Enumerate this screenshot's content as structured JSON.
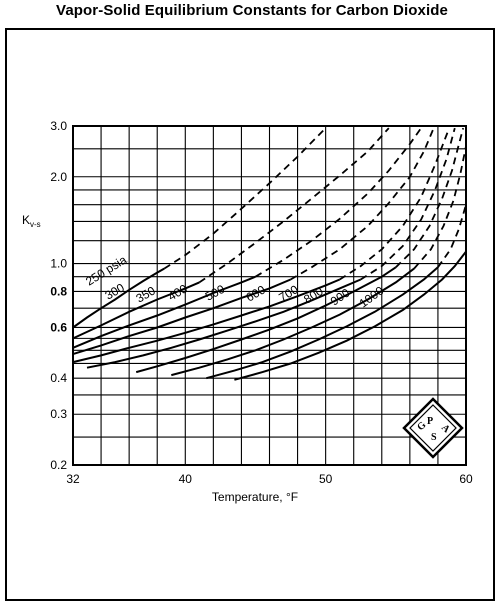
{
  "chart_data": {
    "type": "line",
    "title": "Vapor-Solid Equilibrium Constants for Carbon Dioxide",
    "xlabel": "Temperature, °F",
    "ylabel": "Kv-s",
    "ylabel_main": "K",
    "ylabel_sub": "v-s",
    "xlim": [
      32,
      60
    ],
    "ylim": [
      0.2,
      3.0
    ],
    "yscale": "log",
    "grid": true,
    "x_ticks": [
      32,
      40,
      50,
      60
    ],
    "y_ticks": [
      {
        "value": 0.2,
        "label": "0.2"
      },
      {
        "value": 0.3,
        "label": "0.3"
      },
      {
        "value": 0.4,
        "label": "0.4"
      },
      {
        "value": 0.6,
        "label": "0.6"
      },
      {
        "value": 0.8,
        "label": "0.8"
      },
      {
        "value": 1.0,
        "label": "1.0"
      },
      {
        "value": 2.0,
        "label": "2.0"
      },
      {
        "value": 3.0,
        "label": "3.0"
      }
    ],
    "series": [
      {
        "name": "250 psia",
        "solid": [
          [
            32,
            0.6
          ],
          [
            33,
            0.65
          ],
          [
            34,
            0.7
          ],
          [
            35,
            0.75
          ],
          [
            36,
            0.81
          ],
          [
            37,
            0.87
          ],
          [
            38,
            0.93
          ],
          [
            38.5,
            0.96
          ]
        ],
        "dashed": [
          [
            38.5,
            0.96
          ],
          [
            40,
            1.07
          ],
          [
            42,
            1.27
          ],
          [
            44,
            1.55
          ],
          [
            46,
            1.9
          ],
          [
            48,
            2.35
          ],
          [
            50,
            2.95
          ]
        ]
      },
      {
        "name": "300",
        "solid": [
          [
            32,
            0.55
          ],
          [
            34,
            0.61
          ],
          [
            36,
            0.68
          ],
          [
            38,
            0.75
          ],
          [
            40,
            0.82
          ],
          [
            41,
            0.86
          ]
        ],
        "dashed": [
          [
            41,
            0.86
          ],
          [
            43,
            1.0
          ],
          [
            45,
            1.18
          ],
          [
            47,
            1.4
          ],
          [
            49,
            1.68
          ],
          [
            51,
            2.02
          ],
          [
            53,
            2.45
          ],
          [
            54.5,
            2.95
          ]
        ]
      },
      {
        "name": "350",
        "solid": [
          [
            32,
            0.51
          ],
          [
            34,
            0.56
          ],
          [
            36,
            0.61
          ],
          [
            38,
            0.66
          ],
          [
            40,
            0.72
          ],
          [
            42,
            0.79
          ],
          [
            44,
            0.86
          ],
          [
            45,
            0.9
          ]
        ],
        "dashed": [
          [
            45,
            0.9
          ],
          [
            47,
            1.03
          ],
          [
            49,
            1.2
          ],
          [
            51,
            1.43
          ],
          [
            53,
            1.75
          ],
          [
            54.5,
            2.1
          ],
          [
            56,
            2.6
          ],
          [
            56.8,
            2.95
          ]
        ]
      },
      {
        "name": "400",
        "solid": [
          [
            32,
            0.485
          ],
          [
            34,
            0.52
          ],
          [
            36,
            0.56
          ],
          [
            38,
            0.6
          ],
          [
            40,
            0.65
          ],
          [
            42,
            0.7
          ],
          [
            44,
            0.76
          ],
          [
            46,
            0.82
          ],
          [
            47.5,
            0.88
          ]
        ],
        "dashed": [
          [
            47.5,
            0.88
          ],
          [
            49,
            0.97
          ],
          [
            51,
            1.12
          ],
          [
            53,
            1.35
          ],
          [
            54.5,
            1.62
          ],
          [
            56,
            2.0
          ],
          [
            57,
            2.45
          ],
          [
            57.7,
            2.95
          ]
        ]
      },
      {
        "name": "500",
        "solid": [
          [
            32,
            0.455
          ],
          [
            34,
            0.48
          ],
          [
            36,
            0.51
          ],
          [
            38,
            0.54
          ],
          [
            40,
            0.575
          ],
          [
            42,
            0.615
          ],
          [
            44,
            0.66
          ],
          [
            46,
            0.71
          ],
          [
            48,
            0.77
          ],
          [
            50,
            0.84
          ],
          [
            51,
            0.88
          ]
        ],
        "dashed": [
          [
            51,
            0.88
          ],
          [
            52.5,
            0.98
          ],
          [
            54,
            1.12
          ],
          [
            55.5,
            1.35
          ],
          [
            56.8,
            1.7
          ],
          [
            57.8,
            2.2
          ],
          [
            58.5,
            2.7
          ],
          [
            58.8,
            2.95
          ]
        ]
      },
      {
        "name": "600",
        "solid": [
          [
            33,
            0.435
          ],
          [
            35,
            0.455
          ],
          [
            37,
            0.48
          ],
          [
            39,
            0.51
          ],
          [
            41,
            0.545
          ],
          [
            43,
            0.585
          ],
          [
            45,
            0.63
          ],
          [
            47,
            0.68
          ],
          [
            49,
            0.745
          ],
          [
            51,
            0.82
          ],
          [
            52.5,
            0.88
          ]
        ],
        "dashed": [
          [
            52.5,
            0.88
          ],
          [
            54,
            0.98
          ],
          [
            55.5,
            1.15
          ],
          [
            56.8,
            1.42
          ],
          [
            57.8,
            1.8
          ],
          [
            58.6,
            2.3
          ],
          [
            59.2,
            2.95
          ]
        ]
      },
      {
        "name": "700",
        "solid": [
          [
            36.5,
            0.42
          ],
          [
            38,
            0.44
          ],
          [
            40,
            0.47
          ],
          [
            42,
            0.505
          ],
          [
            44,
            0.545
          ],
          [
            46,
            0.59
          ],
          [
            48,
            0.645
          ],
          [
            50,
            0.715
          ],
          [
            52,
            0.8
          ],
          [
            54,
            0.9
          ],
          [
            55,
            0.97
          ]
        ],
        "dashed": [
          [
            55,
            0.97
          ],
          [
            56.3,
            1.12
          ],
          [
            57.4,
            1.35
          ],
          [
            58.3,
            1.68
          ],
          [
            59,
            2.1
          ],
          [
            59.5,
            2.6
          ],
          [
            59.8,
            2.95
          ]
        ]
      },
      {
        "name": "800",
        "solid": [
          [
            39,
            0.41
          ],
          [
            41,
            0.435
          ],
          [
            43,
            0.465
          ],
          [
            45,
            0.5
          ],
          [
            47,
            0.545
          ],
          [
            49,
            0.6
          ],
          [
            51,
            0.665
          ],
          [
            53,
            0.75
          ],
          [
            55,
            0.86
          ],
          [
            56.3,
            0.96
          ]
        ],
        "dashed": [
          [
            56.3,
            0.96
          ],
          [
            57.5,
            1.12
          ],
          [
            58.4,
            1.35
          ],
          [
            59.1,
            1.65
          ],
          [
            59.6,
            2.05
          ],
          [
            60,
            2.55
          ]
        ]
      },
      {
        "name": "900",
        "solid": [
          [
            41.5,
            0.4
          ],
          [
            43.5,
            0.425
          ],
          [
            45.5,
            0.455
          ],
          [
            47.5,
            0.495
          ],
          [
            49.5,
            0.545
          ],
          [
            51.5,
            0.605
          ],
          [
            53.5,
            0.68
          ],
          [
            55.5,
            0.78
          ],
          [
            57,
            0.88
          ],
          [
            58,
            0.97
          ]
        ],
        "dashed": [
          [
            58,
            0.97
          ],
          [
            58.9,
            1.12
          ],
          [
            59.5,
            1.32
          ],
          [
            60,
            1.6
          ]
        ]
      },
      {
        "name": "1000",
        "solid": [
          [
            43.5,
            0.395
          ],
          [
            45.5,
            0.42
          ],
          [
            47.5,
            0.45
          ],
          [
            49.5,
            0.49
          ],
          [
            51.5,
            0.54
          ],
          [
            53.5,
            0.605
          ],
          [
            55.5,
            0.69
          ],
          [
            57,
            0.78
          ],
          [
            58.3,
            0.88
          ],
          [
            59.2,
            0.98
          ],
          [
            60,
            1.1
          ]
        ],
        "dashed": []
      }
    ]
  }
}
